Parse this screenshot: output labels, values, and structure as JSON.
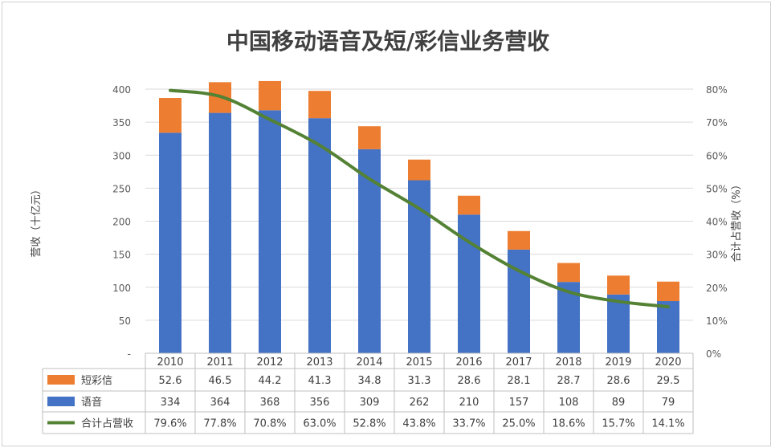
{
  "chart_data": {
    "type": "bar",
    "title": "中国移动语音及短/彩信业务营收",
    "ylabel": "营收（十亿元）",
    "y2label": "合计占营收（%）",
    "ylim": [
      0,
      400
    ],
    "y2lim": [
      0,
      80
    ],
    "yticks": [
      "-",
      "50",
      "100",
      "150",
      "200",
      "250",
      "300",
      "350",
      "400"
    ],
    "y2ticks": [
      "0%",
      "10%",
      "20%",
      "30%",
      "40%",
      "50%",
      "60%",
      "70%",
      "80%"
    ],
    "categories": [
      "2010",
      "2011",
      "2012",
      "2013",
      "2014",
      "2015",
      "2016",
      "2017",
      "2018",
      "2019",
      "2020"
    ],
    "series": [
      {
        "name": "短彩信",
        "kind": "bar",
        "color": "#ED7D31",
        "values": [
          52.6,
          46.5,
          44.2,
          41.3,
          34.8,
          31.3,
          28.6,
          28.1,
          28.7,
          28.6,
          29.5
        ],
        "labels": [
          "52.6",
          "46.5",
          "44.2",
          "41.3",
          "34.8",
          "31.3",
          "28.6",
          "28.1",
          "28.7",
          "28.6",
          "29.5"
        ]
      },
      {
        "name": "语音",
        "kind": "bar",
        "color": "#4472C4",
        "values": [
          334,
          364,
          368,
          356,
          309,
          262,
          210,
          157,
          108,
          89,
          79
        ],
        "labels": [
          "334",
          "364",
          "368",
          "356",
          "309",
          "262",
          "210",
          "157",
          "108",
          "89",
          "79"
        ]
      },
      {
        "name": "合计占营收",
        "kind": "line",
        "axis": "right",
        "color": "#548235",
        "values": [
          79.6,
          77.8,
          70.8,
          63.0,
          52.8,
          43.8,
          33.7,
          25.0,
          18.6,
          15.7,
          14.1
        ],
        "labels": [
          "79.6%",
          "77.8%",
          "70.8%",
          "63.0%",
          "52.8%",
          "43.8%",
          "33.7%",
          "25.0%",
          "18.6%",
          "15.7%",
          "14.1%"
        ]
      }
    ],
    "grid": true
  }
}
